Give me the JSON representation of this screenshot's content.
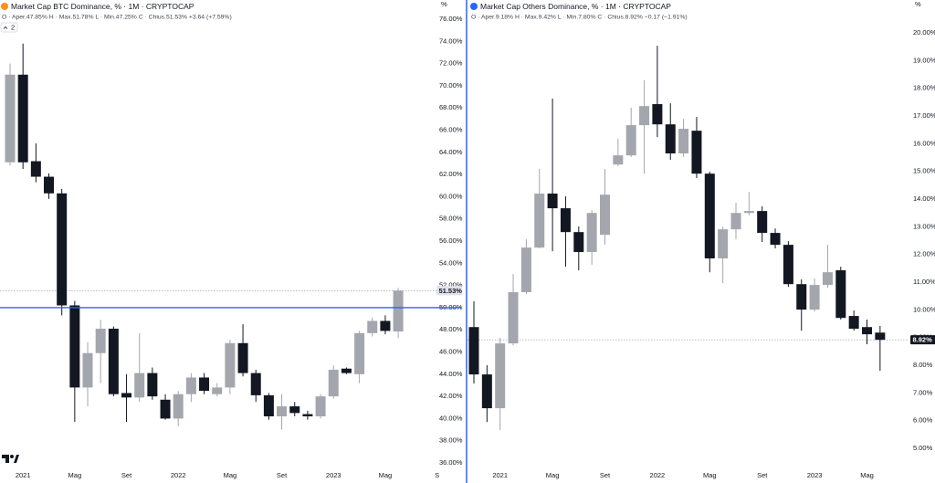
{
  "chart_data": [
    {
      "type": "candlestick",
      "title": "Market Cap BTC Dominance, % · 1M · CRYPTOCAP",
      "legend": "O · Aper.47.85% H · Max.51.78% L · Min.47.25% C · Chius.51.53% +3.64 (+7.59%)",
      "collapse_label": "2",
      "ylabel": "%",
      "categories": [
        null,
        "2021",
        null,
        null,
        null,
        "Mag",
        null,
        null,
        null,
        "Set",
        null,
        null,
        null,
        "2022",
        null,
        null,
        null,
        "Mag",
        null,
        null,
        null,
        "Set",
        null,
        null,
        null,
        "2023",
        null,
        null,
        null,
        "Mag",
        null,
        null,
        null,
        "S"
      ],
      "open": [
        63.1,
        71.0,
        63.2,
        61.8,
        60.3,
        50.2,
        42.8,
        45.9,
        48.1,
        42.3,
        41.9,
        44.1,
        41.7,
        40.0,
        42.2,
        43.7,
        42.2,
        42.8,
        46.8,
        44.1,
        42.1,
        40.2,
        41.1,
        40.4,
        40.2,
        42.0,
        44.5,
        44.0,
        47.7,
        48.8,
        47.85,
        null,
        null,
        null
      ],
      "high": [
        72.0,
        73.8,
        64.8,
        62.1,
        60.7,
        50.6,
        46.9,
        48.9,
        48.3,
        44.0,
        47.7,
        44.6,
        42.2,
        42.5,
        44.1,
        44.1,
        43.2,
        47.1,
        48.5,
        44.4,
        42.3,
        42.2,
        41.5,
        40.7,
        42.2,
        44.8,
        44.6,
        47.9,
        49.1,
        49.3,
        51.78,
        null,
        null,
        null
      ],
      "low": [
        62.8,
        62.5,
        61.3,
        59.8,
        49.3,
        39.7,
        41.1,
        43.2,
        42.0,
        39.7,
        41.5,
        41.7,
        39.9,
        39.3,
        41.5,
        42.2,
        42.0,
        42.2,
        43.8,
        41.5,
        39.9,
        39.0,
        40.2,
        39.9,
        40.0,
        41.8,
        44.0,
        43.2,
        47.4,
        47.6,
        47.25,
        null,
        null,
        null
      ],
      "close": [
        71.0,
        63.1,
        61.8,
        60.3,
        50.2,
        42.8,
        45.9,
        48.1,
        42.2,
        41.9,
        44.1,
        42.0,
        40.0,
        42.2,
        43.7,
        42.5,
        42.8,
        46.8,
        44.1,
        42.1,
        40.2,
        41.1,
        40.5,
        40.2,
        42.0,
        44.4,
        44.1,
        47.7,
        48.8,
        47.9,
        51.53,
        null,
        null,
        null
      ],
      "up_color": "#a3a6ad",
      "down_color": "#131722",
      "ylim": [
        35.59,
        77.73
      ],
      "yticks": [
        {
          "value": 76,
          "label": "76.00%"
        },
        {
          "value": 74,
          "label": "74.00%"
        },
        {
          "value": 72,
          "label": "72.00%"
        },
        {
          "value": 70,
          "label": "70.00%"
        },
        {
          "value": 68,
          "label": "68.00%"
        },
        {
          "value": 66,
          "label": "66.00%"
        },
        {
          "value": 64,
          "label": "64.00%"
        },
        {
          "value": 62,
          "label": "62.00%"
        },
        {
          "value": 60,
          "label": "60.00%"
        },
        {
          "value": 58,
          "label": "58.00%"
        },
        {
          "value": 56,
          "label": "56.00%"
        },
        {
          "value": 54,
          "label": "54.00%"
        },
        {
          "value": 52,
          "label": "52.00%"
        },
        {
          "value": 50,
          "label": "50.00%"
        },
        {
          "value": 48,
          "label": "48.00%"
        },
        {
          "value": 46,
          "label": "46.00%"
        },
        {
          "value": 44,
          "label": "44.00%"
        },
        {
          "value": 42,
          "label": "42.00%"
        },
        {
          "value": 40,
          "label": "40.00%"
        },
        {
          "value": 38,
          "label": "38.00%"
        },
        {
          "value": 36,
          "label": "36.00%"
        }
      ],
      "hline": 50,
      "hline_color": "#2962ff",
      "icon_color": "#f7931a",
      "price_label": {
        "value": 51.53,
        "label": "51.53%"
      },
      "price_label_bg": "#e0e3eb",
      "price_label_color": "#131722"
    },
    {
      "type": "candlestick",
      "title": "Market Cap Others Dominance, % · 1M · CRYPTOCAP",
      "legend": "O · Aper.9.18% H · Max.9.42% L · Min.7.80% C · Chius.8.92% −0.17 (−1.91%)",
      "ylabel": "%",
      "categories": [
        null,
        null,
        "2021",
        null,
        null,
        null,
        "Mag",
        null,
        null,
        null,
        "Set",
        null,
        null,
        null,
        "2022",
        null,
        null,
        null,
        "Mag",
        null,
        null,
        null,
        "Set",
        null,
        null,
        null,
        "2023",
        null,
        null,
        null,
        "Mag",
        null
      ],
      "open": [
        9.38,
        7.67,
        6.45,
        8.79,
        10.64,
        12.25,
        14.2,
        13.67,
        12.81,
        12.09,
        12.71,
        15.25,
        15.58,
        16.67,
        17.43,
        16.7,
        15.65,
        16.47,
        14.92,
        11.86,
        12.91,
        13.5,
        13.57,
        12.78,
        12.35,
        10.93,
        10.01,
        10.9,
        11.43,
        9.78,
        9.38,
        9.18
      ],
      "high": [
        10.31,
        8.0,
        8.99,
        11.3,
        12.55,
        15.09,
        17.63,
        14.1,
        13.01,
        13.6,
        15.09,
        16.18,
        17.3,
        18.29,
        19.54,
        17.46,
        16.9,
        16.97,
        14.99,
        13.01,
        13.87,
        14.26,
        13.74,
        12.94,
        12.48,
        11.1,
        11.13,
        12.35,
        11.56,
        9.98,
        9.65,
        9.42
      ],
      "low": [
        7.34,
        5.95,
        5.66,
        8.72,
        10.57,
        12.22,
        12.12,
        11.56,
        11.43,
        11.63,
        12.35,
        15.19,
        15.52,
        14.92,
        16.24,
        15.42,
        15.52,
        14.76,
        11.36,
        10.97,
        12.55,
        13.41,
        12.45,
        12.22,
        10.83,
        9.25,
        9.94,
        10.8,
        9.65,
        9.25,
        8.76,
        7.8
      ],
      "close": [
        7.67,
        6.45,
        8.79,
        10.64,
        12.25,
        14.2,
        13.67,
        12.81,
        12.09,
        13.5,
        14.16,
        15.58,
        16.67,
        17.36,
        16.7,
        15.65,
        16.54,
        14.92,
        11.86,
        12.91,
        13.5,
        13.57,
        12.78,
        12.35,
        10.93,
        10.01,
        10.9,
        11.36,
        9.71,
        9.32,
        9.12,
        8.92
      ],
      "up_color": "#a3a6ad",
      "down_color": "#131722",
      "ylim": [
        4.31,
        21.19
      ],
      "yticks": [
        {
          "value": 20,
          "label": "20.00%"
        },
        {
          "value": 19,
          "label": "19.00%"
        },
        {
          "value": 18,
          "label": "18.00%"
        },
        {
          "value": 17,
          "label": "17.00%"
        },
        {
          "value": 16,
          "label": "16.00%"
        },
        {
          "value": 15,
          "label": "15.00%"
        },
        {
          "value": 14,
          "label": "14.00%"
        },
        {
          "value": 13,
          "label": "13.00%"
        },
        {
          "value": 12,
          "label": "12.00%"
        },
        {
          "value": 11,
          "label": "11.00%"
        },
        {
          "value": 10,
          "label": "10.00%"
        },
        {
          "value": 9,
          "label": "9.00%"
        },
        {
          "value": 8,
          "label": "8.00%"
        },
        {
          "value": 7,
          "label": "7.00%"
        },
        {
          "value": 6,
          "label": "6.00%"
        },
        {
          "value": 5,
          "label": "5.00%"
        }
      ],
      "icon_color": "#2962ff",
      "price_label": {
        "value": 8.92,
        "label": "8.92%"
      },
      "price_label_bg": "#131722",
      "price_label_color": "#ffffff"
    }
  ]
}
